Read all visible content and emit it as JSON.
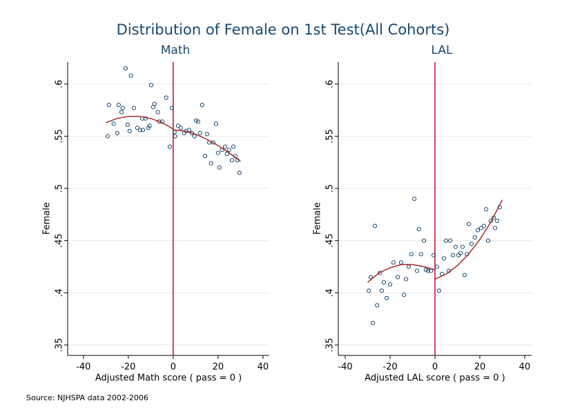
{
  "title": "Distribution of Female on 1st Test(All Cohorts)",
  "note": "Source: NJHSPA data 2002-2006",
  "chart_data": [
    {
      "type": "scatter",
      "subtitle": "Math",
      "xlabel": "Adjusted Math score ( pass = 0 )",
      "ylabel": "Female",
      "xlim": [
        -47,
        42.8
      ],
      "ylim": [
        0.34,
        0.621
      ],
      "xticks": [
        -40,
        -20,
        0,
        20,
        40
      ],
      "yticks": [
        {
          "value": 0.35,
          "label": ".35"
        },
        {
          "value": 0.4,
          "label": ".4"
        },
        {
          "value": 0.45,
          "label": ".45"
        },
        {
          "value": 0.5,
          "label": ".5"
        },
        {
          "value": 0.55,
          "label": ".55"
        },
        {
          "value": 0.6,
          "label": ".6"
        }
      ],
      "grid": true,
      "xline": 0,
      "xline_color": "#c10534",
      "series": [
        {
          "color": "#1a476f",
          "mode": "markers",
          "x": [
            -29.2,
            -28.6,
            -26.5,
            -24.9,
            -24.3,
            -23,
            -22.5,
            -21.2,
            -20.3,
            -19.4,
            -18.8,
            -17.5,
            -16,
            -14.8,
            -13.8,
            -13.5,
            -12.3,
            -11.1,
            -10.5,
            -9.8,
            -8.9,
            -8.3,
            -6.8,
            -6.2,
            -4.9,
            -3.1,
            -1.5,
            -0.6,
            0.6,
            0.9,
            2.2,
            3.4,
            4.9,
            5.8,
            7.1,
            8.3,
            9.5,
            10.2,
            11.1,
            12,
            12.9,
            14.2,
            15.1,
            16,
            16.9,
            17.8,
            19.1,
            20,
            20.6,
            21.8,
            23.1,
            24,
            24.9,
            26.2,
            26.8,
            27.7,
            28.6,
            29.5
          ],
          "values": [
            0.55,
            0.58,
            0.562,
            0.553,
            0.58,
            0.573,
            0.577,
            0.615,
            0.561,
            0.555,
            0.608,
            0.577,
            0.558,
            0.556,
            0.567,
            0.556,
            0.567,
            0.558,
            0.56,
            0.599,
            0.578,
            0.581,
            0.573,
            0.564,
            0.564,
            0.587,
            0.54,
            0.577,
            0.554,
            0.55,
            0.56,
            0.558,
            0.553,
            0.555,
            0.556,
            0.553,
            0.55,
            0.565,
            0.564,
            0.553,
            0.58,
            0.531,
            0.552,
            0.544,
            0.524,
            0.544,
            0.562,
            0.534,
            0.52,
            0.537,
            0.54,
            0.533,
            0.537,
            0.527,
            0.54,
            0.531,
            0.527,
            0.515
          ]
        },
        {
          "color": "#a32a2a",
          "mode": "line",
          "x": [
            -30,
            -25,
            -20,
            -15,
            -10,
            -5,
            0
          ],
          "values": [
            0.563,
            0.567,
            0.569,
            0.569,
            0.567,
            0.563,
            0.557
          ]
        },
        {
          "color": "#a32a2a",
          "mode": "line",
          "x": [
            0,
            5,
            10,
            15,
            20,
            25,
            30
          ],
          "values": [
            0.556,
            0.555,
            0.552,
            0.547,
            0.541,
            0.534,
            0.526
          ]
        }
      ]
    },
    {
      "type": "scatter",
      "subtitle": "LAL",
      "xlabel": "Adjusted LAL score ( pass = 0 )",
      "ylabel": "Female",
      "xlim": [
        -43.1,
        43.1
      ],
      "ylim": [
        0.34,
        0.621
      ],
      "xticks": [
        -40,
        -20,
        0,
        20,
        40
      ],
      "yticks": [
        {
          "value": 0.35,
          "label": ".35"
        },
        {
          "value": 0.4,
          "label": ".4"
        },
        {
          "value": 0.45,
          "label": ".45"
        },
        {
          "value": 0.5,
          "label": ".5"
        },
        {
          "value": 0.55,
          "label": ".55"
        },
        {
          "value": 0.6,
          "label": ".6"
        }
      ],
      "grid": true,
      "xline": 0,
      "xline_color": "#c10534",
      "series": [
        {
          "color": "#1a476f",
          "mode": "markers",
          "x": [
            -29.5,
            -28.6,
            -27.7,
            -26.8,
            -25.8,
            -24.6,
            -23.7,
            -22.8,
            -21.5,
            -20,
            -18.5,
            -16.6,
            -15.1,
            -13.8,
            -12.9,
            -11.7,
            -10.5,
            -9.2,
            -8,
            -7.1,
            -6.2,
            -4.9,
            -4,
            -3.1,
            -1.8,
            -0.6,
            0.9,
            1.8,
            3.1,
            4,
            4.9,
            6.2,
            6.8,
            8,
            9.2,
            10.5,
            11.4,
            12.3,
            13.2,
            14.2,
            15.1,
            16.3,
            17.8,
            19.1,
            20.6,
            21.8,
            22.8,
            23.7,
            24.9,
            26.2,
            26.8,
            27.7,
            28.9
          ],
          "values": [
            0.402,
            0.415,
            0.371,
            0.464,
            0.388,
            0.419,
            0.402,
            0.41,
            0.395,
            0.408,
            0.429,
            0.415,
            0.429,
            0.398,
            0.413,
            0.425,
            0.437,
            0.49,
            0.421,
            0.461,
            0.437,
            0.45,
            0.422,
            0.421,
            0.421,
            0.436,
            0.425,
            0.402,
            0.418,
            0.433,
            0.45,
            0.421,
            0.45,
            0.436,
            0.444,
            0.436,
            0.438,
            0.444,
            0.417,
            0.437,
            0.466,
            0.447,
            0.453,
            0.46,
            0.462,
            0.464,
            0.48,
            0.45,
            0.469,
            0.472,
            0.462,
            0.469,
            0.482
          ]
        },
        {
          "color": "#a32a2a",
          "mode": "line",
          "x": [
            -30,
            -25,
            -20,
            -15,
            -10,
            -5,
            0
          ],
          "values": [
            0.41,
            0.419,
            0.424,
            0.427,
            0.427,
            0.425,
            0.422
          ]
        },
        {
          "color": "#a32a2a",
          "mode": "line",
          "x": [
            0,
            5,
            10,
            15,
            20,
            25,
            30
          ],
          "values": [
            0.413,
            0.418,
            0.426,
            0.437,
            0.451,
            0.468,
            0.489
          ]
        }
      ]
    }
  ]
}
